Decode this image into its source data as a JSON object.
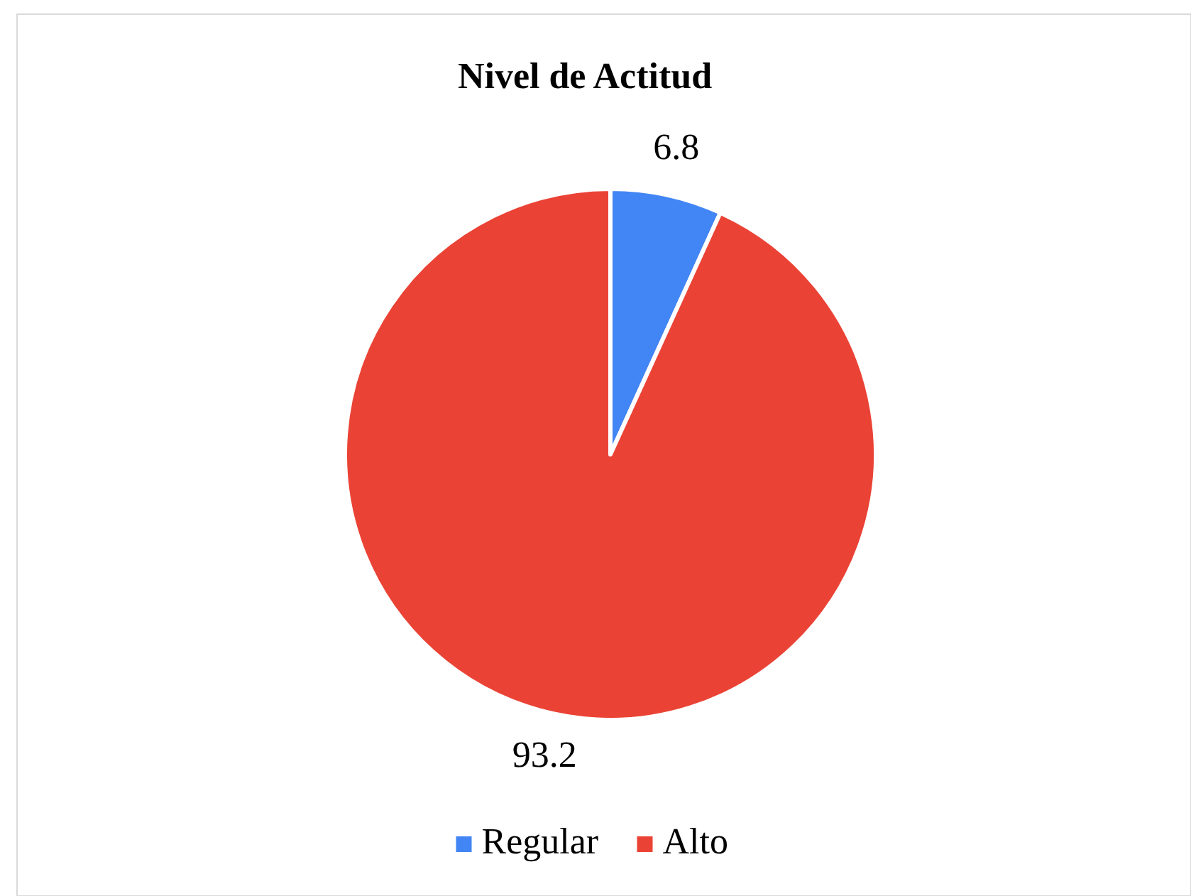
{
  "chart_data": {
    "type": "pie",
    "title": "Nivel de Actitud",
    "categories": [
      "Regular",
      "Alto"
    ],
    "values": [
      6.8,
      93.2
    ],
    "colors": [
      "#4285f4",
      "#ea4335"
    ],
    "data_labels": true,
    "legend": "bottom"
  }
}
